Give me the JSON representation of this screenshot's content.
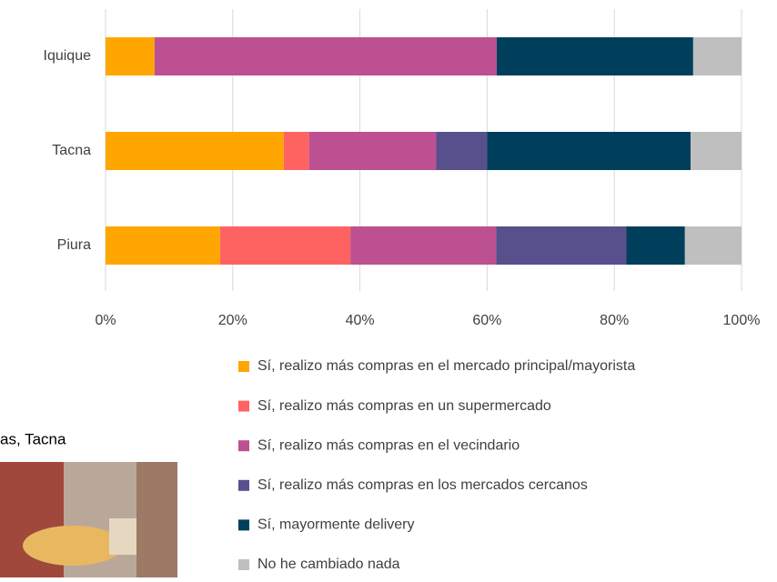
{
  "chart_data": {
    "type": "stacked-bar-horizontal",
    "categories": [
      "Iquique",
      "Tacna",
      "Piura"
    ],
    "series": [
      {
        "name": "Sí, realizo más compras en el mercado principal/mayorista",
        "color": "#ffa600",
        "values": [
          7.7,
          28,
          18
        ]
      },
      {
        "name": "Sí, realizo más compras en un supermercado",
        "color": "#ff6361",
        "values": [
          0,
          4,
          20.5
        ]
      },
      {
        "name": "Sí, realizo más compras en el vecindario",
        "color": "#bc5090",
        "values": [
          53.8,
          20,
          22.9
        ]
      },
      {
        "name": "Sí, realizo más compras en los mercados cercanos",
        "color": "#58508d",
        "values": [
          0,
          8,
          20.5
        ]
      },
      {
        "name": "Sí, mayormente delivery",
        "color": "#003f5c",
        "values": [
          30.9,
          32,
          9.2
        ]
      },
      {
        "name": "No he cambiado nada",
        "color": "#bfbfbf",
        "values": [
          7.6,
          8,
          8.9
        ]
      }
    ],
    "xlim": [
      0,
      100
    ],
    "xticks": [
      {
        "value": 0,
        "label": "0%"
      },
      {
        "value": 20,
        "label": "20%"
      },
      {
        "value": 40,
        "label": "40%"
      },
      {
        "value": 60,
        "label": "60%"
      },
      {
        "value": 80,
        "label": "80%"
      },
      {
        "value": 100,
        "label": "100%"
      }
    ],
    "grid": true
  },
  "photo_caption": "as, Tacna"
}
